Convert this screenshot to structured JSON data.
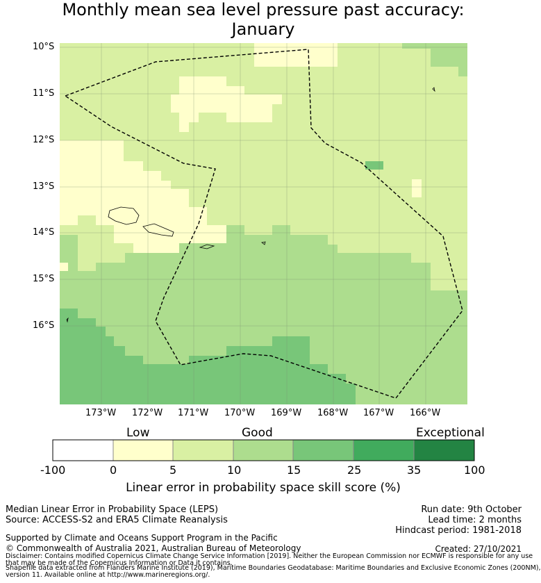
{
  "title_line1": "Monthly mean sea level pressure past accuracy:",
  "title_line2": "January",
  "map": {
    "lat_labels": [
      "10°S",
      "11°S",
      "12°S",
      "13°S",
      "14°S",
      "15°S",
      "16°S"
    ],
    "lon_labels": [
      "173°W",
      "172°W",
      "171°W",
      "170°W",
      "169°W",
      "168°W",
      "167°W",
      "166°W"
    ],
    "colors": {
      "low": "#ffffcc",
      "good_low": "#d9f0a3",
      "good": "#addd8e",
      "good_high": "#78c679",
      "high": "#41ab5d",
      "exceptional": "#238443"
    }
  },
  "colorbar": {
    "categories": [
      "Low",
      "Good",
      "Exceptional"
    ],
    "ticks": [
      "-100",
      "0",
      "5",
      "10",
      "15",
      "25",
      "35",
      "100"
    ],
    "label": "Linear error in probability space skill score (%)",
    "segment_colors": [
      "#ffffff",
      "#ffffcc",
      "#d9f0a3",
      "#addd8e",
      "#78c679",
      "#41ab5d",
      "#238443"
    ]
  },
  "info": {
    "method": "Median Linear Error in Probability Space (LEPS)",
    "source": "Source: ACCESS-S2 and ERA5 Climate Reanalysis",
    "run_date": "Run date: 9th October",
    "lead_time": "Lead time: 2 months",
    "hindcast": "Hindcast period: 1981-2018",
    "support": "Supported by Climate and Oceans Support Program in the Pacific",
    "copyright": "© Commonwealth of Australia 2021, Australian Bureau of Meteorology",
    "created": "Created: 27/10/2021",
    "disclaimer1": "Disclaimer: Contains modified Copernicus Climate Change Service Information [2019]. Neither the European Commission nor ECMWF is responsible for any use",
    "disclaimer2": "that may be made of the Copernicus Information or Data it contains.",
    "shapefile1": "Shapefile data extracted from Flanders Marine Institute (2019), Maritime Boundaries Geodatabase: Maritime Boundaries and Exclusive Economic Zones (200NM),",
    "shapefile2": "version 11. Available online at http://www.marineregions.org/."
  }
}
